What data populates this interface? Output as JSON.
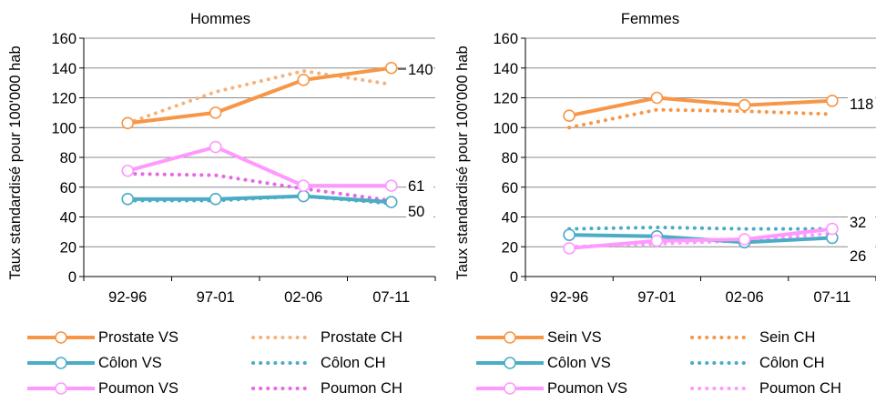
{
  "colors": {
    "prostate_sein": "#F79646",
    "prostate_sein_ch": "#F7B27A",
    "colon": "#4BACC6",
    "poumon": "#FF99FF",
    "poumon_ch": "#E866E8",
    "axis": "#000000",
    "grid": "#8c8c8c"
  },
  "chart_data": [
    {
      "type": "line",
      "title": "Hommes",
      "ylabel": "Taux standardisé pour 100'000 hab",
      "categories": [
        "92-96",
        "97-01",
        "02-06",
        "07-11"
      ],
      "ylim": [
        0,
        160
      ],
      "yticks": [
        0,
        20,
        40,
        60,
        80,
        100,
        120,
        140,
        160
      ],
      "grid": "horizontal",
      "series": [
        {
          "name": "Prostate VS",
          "style": "solid-marker",
          "color": "#F79646",
          "values": [
            103,
            110,
            132,
            140
          ]
        },
        {
          "name": "Prostate CH",
          "style": "dotted",
          "color": "#F7B27A",
          "values": [
            103,
            124,
            138,
            129
          ]
        },
        {
          "name": "Côlon VS",
          "style": "solid-marker",
          "color": "#4BACC6",
          "values": [
            52,
            52,
            54,
            50
          ]
        },
        {
          "name": "Côlon CH",
          "style": "dotted",
          "color": "#4BACC6",
          "values": [
            51,
            51,
            54,
            49
          ]
        },
        {
          "name": "Poumon VS",
          "style": "solid-marker",
          "color": "#FF99FF",
          "values": [
            71,
            87,
            61,
            61
          ]
        },
        {
          "name": "Poumon CH",
          "style": "dotted",
          "color": "#E866E8",
          "values": [
            69,
            68,
            59,
            51
          ]
        }
      ],
      "end_labels": [
        "140",
        "61",
        "50"
      ]
    },
    {
      "type": "line",
      "title": "Femmes",
      "ylabel": "Taux standardisé pour 100'000 hab",
      "categories": [
        "92-96",
        "97-01",
        "02-06",
        "07-11"
      ],
      "ylim": [
        0,
        160
      ],
      "yticks": [
        0,
        20,
        40,
        60,
        80,
        100,
        120,
        140,
        160
      ],
      "grid": "horizontal",
      "series": [
        {
          "name": "Sein VS",
          "style": "solid-marker",
          "color": "#F79646",
          "values": [
            108,
            120,
            115,
            118
          ]
        },
        {
          "name": "Sein CH",
          "style": "dotted",
          "color": "#F79646",
          "values": [
            100,
            112,
            111,
            109
          ]
        },
        {
          "name": "Côlon VS",
          "style": "solid-marker",
          "color": "#4BACC6",
          "values": [
            28,
            27,
            23,
            26
          ]
        },
        {
          "name": "Côlon CH",
          "style": "dotted",
          "color": "#4BACC6",
          "values": [
            32,
            33,
            32,
            32
          ]
        },
        {
          "name": "Poumon VS",
          "style": "solid-marker",
          "color": "#FF99FF",
          "values": [
            19,
            24,
            25,
            32
          ]
        },
        {
          "name": "Poumon CH",
          "style": "dotted",
          "color": "#FF99FF",
          "values": [
            20,
            22,
            24,
            29
          ]
        }
      ],
      "end_labels": [
        "118",
        "32",
        "26"
      ]
    }
  ],
  "legend": [
    [
      {
        "label": "Prostate VS",
        "color": "#F79646",
        "style": "solid-marker"
      },
      {
        "label": "Prostate CH",
        "color": "#F7B27A",
        "style": "dotted"
      },
      {
        "label": "Côlon VS",
        "color": "#4BACC6",
        "style": "solid-marker"
      },
      {
        "label": "Côlon CH",
        "color": "#4BACC6",
        "style": "dotted"
      },
      {
        "label": "Poumon VS",
        "color": "#FF99FF",
        "style": "solid-marker"
      },
      {
        "label": "Poumon CH",
        "color": "#E866E8",
        "style": "dotted"
      }
    ],
    [
      {
        "label": "Sein VS",
        "color": "#F79646",
        "style": "solid-marker"
      },
      {
        "label": "Sein CH",
        "color": "#F79646",
        "style": "dotted"
      },
      {
        "label": "Côlon VS",
        "color": "#4BACC6",
        "style": "solid-marker"
      },
      {
        "label": "Côlon CH",
        "color": "#4BACC6",
        "style": "dotted"
      },
      {
        "label": "Poumon VS",
        "color": "#FF99FF",
        "style": "solid-marker"
      },
      {
        "label": "Poumon CH",
        "color": "#FF99FF",
        "style": "dotted"
      }
    ]
  ]
}
